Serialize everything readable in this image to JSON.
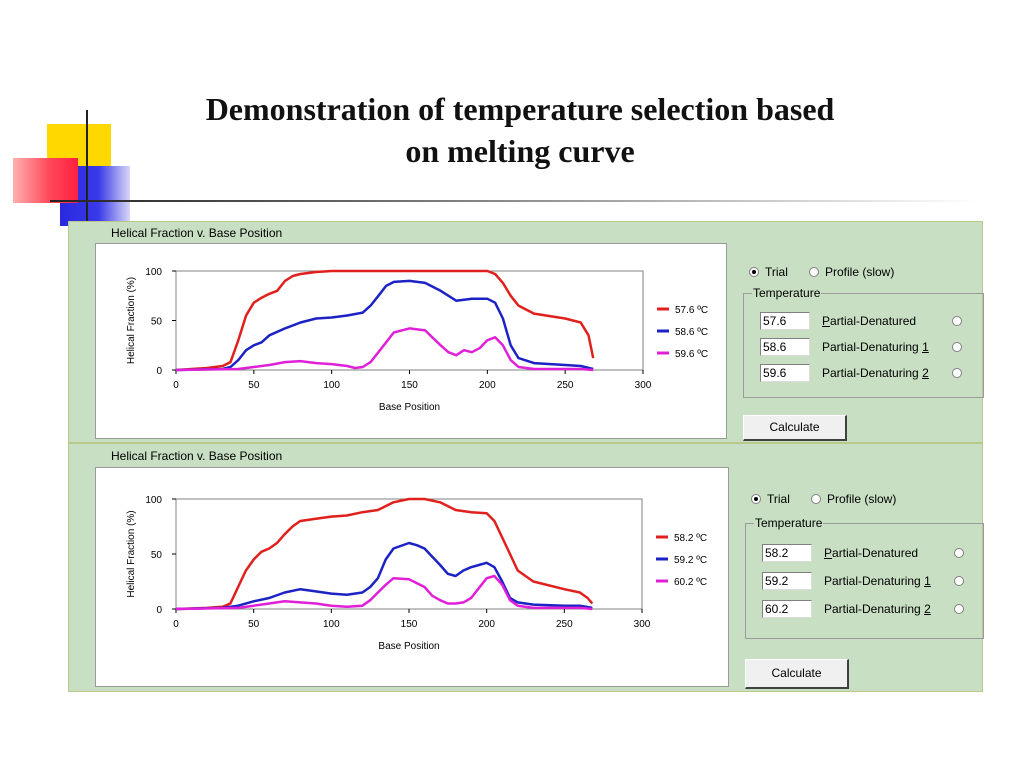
{
  "title_line1": "Demonstration of temperature selection based",
  "title_line2": "on melting curve",
  "colors": {
    "series1": "#e0201c",
    "series2": "#1c22c4",
    "series3": "#e020d8",
    "panel": "#c8dfc3"
  },
  "panels": [
    {
      "plot_title": "Helical Fraction v. Base Position",
      "radio_trial": "Trial",
      "radio_profile": "Profile (slow)",
      "selected_mode": "Trial",
      "group_title": "Temperature",
      "rows": [
        {
          "value": "57.6",
          "label": "Partial-Denatured",
          "key": "P",
          "rest": "artial-Denatured"
        },
        {
          "value": "58.6",
          "label": "Partial-Denaturing 1",
          "pre": "Partial-Denaturing ",
          "key": "1"
        },
        {
          "value": "59.6",
          "label": "Partial-Denaturing 2",
          "pre": "Partial-Denaturing ",
          "key": "2"
        }
      ],
      "calculate": "Calculate"
    },
    {
      "plot_title": "Helical Fraction v. Base Position",
      "radio_trial": "Trial",
      "radio_profile": "Profile (slow)",
      "selected_mode": "Trial",
      "group_title": "Temperature",
      "rows": [
        {
          "value": "58.2",
          "label": "Partial-Denatured",
          "key": "P",
          "rest": "artial-Denatured"
        },
        {
          "value": "59.2",
          "label": "Partial-Denaturing 1",
          "pre": "Partial-Denaturing ",
          "key": "1"
        },
        {
          "value": "60.2",
          "label": "Partial-Denaturing 2",
          "pre": "Partial-Denaturing ",
          "key": "2"
        }
      ],
      "calculate": "Calculate"
    }
  ],
  "chart_data": [
    {
      "type": "line",
      "xlabel": "Base Position",
      "ylabel": "Helical Fraction (%)",
      "xlim": [
        0,
        300
      ],
      "ylim": [
        0,
        100
      ],
      "xticks": [
        0,
        50,
        100,
        150,
        200,
        250,
        300
      ],
      "yticks": [
        0,
        50,
        100
      ],
      "legend_position": "right",
      "series": [
        {
          "name": "57.6 ºC",
          "x": [
            0,
            20,
            30,
            35,
            40,
            45,
            50,
            55,
            60,
            65,
            70,
            75,
            80,
            90,
            100,
            120,
            140,
            150,
            160,
            180,
            200,
            205,
            210,
            215,
            220,
            230,
            250,
            260,
            265,
            268
          ],
          "y": [
            0,
            2,
            4,
            8,
            30,
            55,
            68,
            73,
            77,
            80,
            90,
            95,
            97,
            99,
            100,
            100,
            100,
            100,
            100,
            100,
            100,
            97,
            88,
            75,
            65,
            57,
            52,
            48,
            35,
            12
          ]
        },
        {
          "name": "58.6 ºC",
          "x": [
            0,
            30,
            35,
            40,
            45,
            50,
            55,
            60,
            70,
            80,
            90,
            100,
            110,
            120,
            125,
            130,
            135,
            140,
            150,
            160,
            170,
            180,
            190,
            200,
            205,
            210,
            215,
            220,
            230,
            250,
            260,
            268
          ],
          "y": [
            0,
            1,
            3,
            10,
            20,
            25,
            28,
            35,
            42,
            48,
            52,
            53,
            55,
            58,
            65,
            75,
            85,
            89,
            90,
            88,
            80,
            70,
            72,
            72,
            68,
            52,
            25,
            12,
            7,
            5,
            4,
            1
          ]
        },
        {
          "name": "59.6 ºC",
          "x": [
            0,
            40,
            50,
            60,
            70,
            80,
            90,
            100,
            110,
            115,
            120,
            125,
            130,
            135,
            140,
            150,
            160,
            170,
            175,
            180,
            185,
            190,
            195,
            200,
            205,
            210,
            215,
            220,
            230,
            250,
            260,
            268
          ],
          "y": [
            0,
            1,
            3,
            5,
            8,
            9,
            7,
            6,
            4,
            2,
            3,
            8,
            18,
            28,
            38,
            42,
            40,
            25,
            18,
            15,
            20,
            18,
            22,
            30,
            33,
            25,
            10,
            3,
            1,
            1,
            1,
            0
          ]
        }
      ]
    },
    {
      "type": "line",
      "xlabel": "Base Position",
      "ylabel": "Helical Fraction (%)",
      "xlim": [
        0,
        300
      ],
      "ylim": [
        0,
        100
      ],
      "xticks": [
        0,
        50,
        100,
        150,
        200,
        250,
        300
      ],
      "yticks": [
        0,
        50,
        100
      ],
      "legend_position": "right",
      "series": [
        {
          "name": "58.2 ºC",
          "x": [
            0,
            20,
            30,
            35,
            40,
            45,
            50,
            55,
            60,
            65,
            70,
            75,
            80,
            90,
            100,
            110,
            120,
            130,
            140,
            150,
            160,
            170,
            180,
            190,
            200,
            205,
            210,
            215,
            220,
            230,
            250,
            260,
            265,
            268
          ],
          "y": [
            0,
            1,
            2,
            5,
            20,
            35,
            45,
            52,
            55,
            60,
            68,
            75,
            80,
            82,
            84,
            85,
            88,
            90,
            97,
            100,
            100,
            97,
            90,
            88,
            87,
            80,
            65,
            50,
            35,
            25,
            18,
            15,
            10,
            5
          ]
        },
        {
          "name": "59.2 ºC",
          "x": [
            0,
            30,
            40,
            50,
            60,
            70,
            80,
            90,
            100,
            110,
            120,
            125,
            130,
            135,
            140,
            150,
            155,
            160,
            170,
            175,
            180,
            185,
            190,
            195,
            200,
            205,
            210,
            215,
            220,
            230,
            250,
            260,
            268
          ],
          "y": [
            0,
            1,
            3,
            7,
            10,
            15,
            18,
            16,
            14,
            13,
            15,
            20,
            28,
            45,
            55,
            60,
            58,
            55,
            40,
            32,
            30,
            35,
            38,
            40,
            42,
            38,
            25,
            10,
            6,
            4,
            3,
            3,
            1
          ]
        },
        {
          "name": "60.2 ºC",
          "x": [
            0,
            40,
            50,
            60,
            70,
            80,
            90,
            100,
            110,
            120,
            125,
            130,
            135,
            140,
            150,
            160,
            165,
            170,
            175,
            180,
            185,
            190,
            200,
            205,
            210,
            215,
            220,
            230,
            250,
            260,
            268
          ],
          "y": [
            0,
            1,
            3,
            5,
            7,
            6,
            5,
            3,
            2,
            3,
            8,
            15,
            22,
            28,
            27,
            20,
            12,
            8,
            5,
            5,
            6,
            10,
            28,
            30,
            22,
            8,
            3,
            1,
            1,
            1,
            0
          ]
        }
      ]
    }
  ]
}
